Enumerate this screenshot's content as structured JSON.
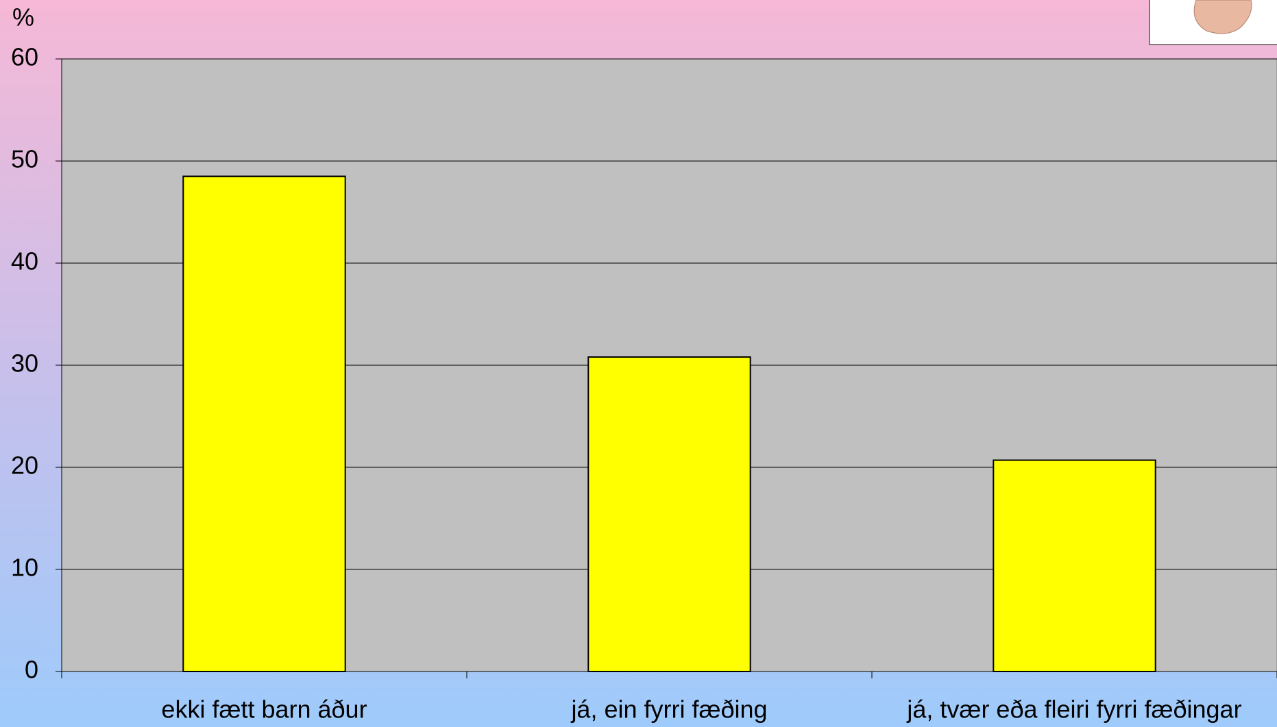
{
  "chart_data": {
    "type": "bar",
    "y_label": "%",
    "categories": [
      "ekki fætt barn áður",
      "já, ein fyrri fæðing",
      "já, tvær eða fleiri fyrri fæðingar"
    ],
    "values": [
      48.5,
      30.8,
      20.7
    ],
    "color": "#ffff00",
    "ylim": [
      0,
      60
    ],
    "yticks": [
      0,
      10,
      20,
      30,
      40,
      50,
      60
    ],
    "grid": true
  }
}
